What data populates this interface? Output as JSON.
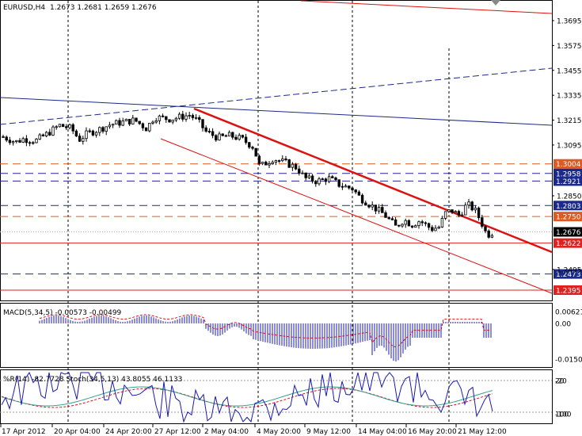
{
  "window_title": "",
  "chart_data": [
    {
      "type": "candlestick",
      "symbol_label": "EURUSD,H4",
      "ohlc_label": "1.2673 1.2681 1.2659 1.2676",
      "ylim": [
        1.235,
        1.377
      ],
      "price_ticks": [
        "1.3695",
        "1.3575",
        "1.3455",
        "1.3335",
        "1.3215",
        "1.3095",
        "1.2850",
        "1.2495"
      ],
      "x_tick_labels": [
        "17 Apr 2012",
        "20 Apr 04:00",
        "24 Apr 20:00",
        "27 Apr 12:00",
        "2 May 04:00",
        "4 May 20:00",
        "9 May 12:00",
        "14 May 04:00",
        "16 May 20:00",
        "21 May 12:00"
      ],
      "current_price": "1.2676",
      "price_levels": [
        {
          "label": "1.3004",
          "color": "#e05a20",
          "style": "dashed",
          "bg": "#e05a20"
        },
        {
          "label": "1.2958",
          "color": "#1b2a8a",
          "style": "dashed",
          "bg": "#1b2a8a"
        },
        {
          "label": "1.2921",
          "color": "#1b2a8a",
          "style": "dashed",
          "bg": "#1b2a8a"
        },
        {
          "label": "1.2803",
          "color": "#1b2a8a",
          "style": "dashed",
          "bg": "#1b2a8a"
        },
        {
          "label": "1.2750",
          "color": "#e05a20",
          "style": "dashed",
          "bg": "#e05a20"
        },
        {
          "label": "1.2622",
          "color": "#dd2222",
          "style": "solid",
          "bg": "#dd2222"
        },
        {
          "label": "1.2473",
          "color": "#1b2a8a",
          "style": "dashed",
          "bg": "#1b2a8a"
        },
        {
          "label": "1.2395",
          "color": "#dd2222",
          "style": "solid",
          "bg": "#dd2222"
        }
      ],
      "colors": {
        "candles": "#000000",
        "trend_main": "#dd1111",
        "trend_blue": "#1b2a8a",
        "grid": "#000000"
      }
    },
    {
      "type": "bar",
      "title": "MACD(5,34,5) -0.00573 -0.00499",
      "ticks": [
        "0.00621",
        "0.00",
        "-0.01504"
      ],
      "colors": {
        "histogram": "#1a1ab5",
        "signal": "#dd1111"
      }
    },
    {
      "type": "line",
      "title": "%R(14) -82.7728  Stoch(34,5,13) 43.8055 46.1133",
      "ticks": [
        "-20",
        "20",
        "-100",
        "100"
      ],
      "colors": {
        "williams": "#1a1ab5",
        "stoch_main": "#3aa08a",
        "stoch_signal": "#dd1111"
      }
    }
  ]
}
